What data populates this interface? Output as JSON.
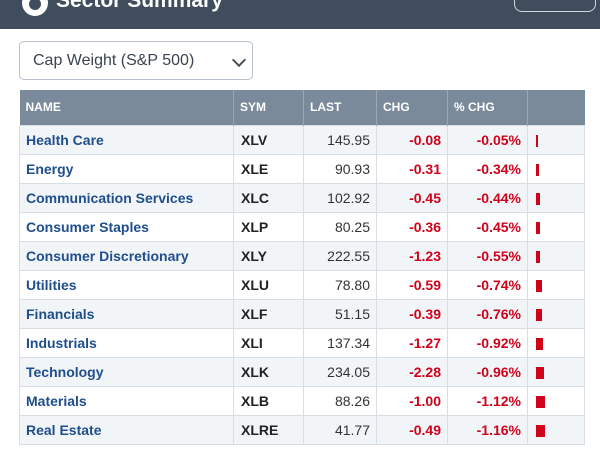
{
  "header": {
    "title": "Sector Summary"
  },
  "dropdown": {
    "selected": "Cap Weight (S&P 500)"
  },
  "table": {
    "columns": [
      "NAME",
      "SYM",
      "LAST",
      "CHG",
      "% CHG",
      ""
    ],
    "rows": [
      {
        "name": "Health Care",
        "sym": "XLV",
        "last": "145.95",
        "chg": "-0.08",
        "pct": "-0.05%",
        "bar": 0.05
      },
      {
        "name": "Energy",
        "sym": "XLE",
        "last": "90.93",
        "chg": "-0.31",
        "pct": "-0.34%",
        "bar": 0.34
      },
      {
        "name": "Communication Services",
        "sym": "XLC",
        "last": "102.92",
        "chg": "-0.45",
        "pct": "-0.44%",
        "bar": 0.44
      },
      {
        "name": "Consumer Staples",
        "sym": "XLP",
        "last": "80.25",
        "chg": "-0.36",
        "pct": "-0.45%",
        "bar": 0.45
      },
      {
        "name": "Consumer Discretionary",
        "sym": "XLY",
        "last": "222.55",
        "chg": "-1.23",
        "pct": "-0.55%",
        "bar": 0.55
      },
      {
        "name": "Utilities",
        "sym": "XLU",
        "last": "78.80",
        "chg": "-0.59",
        "pct": "-0.74%",
        "bar": 0.74
      },
      {
        "name": "Financials",
        "sym": "XLF",
        "last": "51.15",
        "chg": "-0.39",
        "pct": "-0.76%",
        "bar": 0.76
      },
      {
        "name": "Industrials",
        "sym": "XLI",
        "last": "137.34",
        "chg": "-1.27",
        "pct": "-0.92%",
        "bar": 0.92
      },
      {
        "name": "Technology",
        "sym": "XLK",
        "last": "234.05",
        "chg": "-2.28",
        "pct": "-0.96%",
        "bar": 0.96
      },
      {
        "name": "Materials",
        "sym": "XLB",
        "last": "88.26",
        "chg": "-1.00",
        "pct": "-1.12%",
        "bar": 1.12
      },
      {
        "name": "Real Estate",
        "sym": "XLRE",
        "last": "41.77",
        "chg": "-0.49",
        "pct": "-1.16%",
        "bar": 1.16
      }
    ]
  },
  "colors": {
    "negative": "#d0021b",
    "header_bg": "#7a8a9a",
    "topbar_bg": "#3f4d5c",
    "link": "#1f4e8c"
  }
}
